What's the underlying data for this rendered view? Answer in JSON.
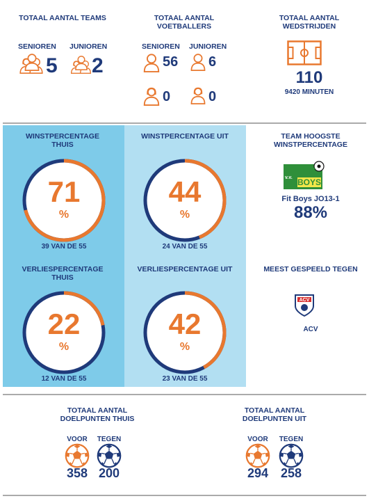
{
  "colors": {
    "navy": "#1f3a7a",
    "orange": "#e8782f",
    "panel_dark": "#7ecbe9",
    "panel_light": "#b2dff2"
  },
  "teams": {
    "title": "TOTAAL AANTAL TEAMS",
    "senioren_label": "SENIOREN",
    "junioren_label": "JUNIOREN",
    "senioren": "5",
    "junioren": "2"
  },
  "voetballers": {
    "title": "TOTAAL AANTAL VOETBALLERS",
    "senioren_label": "SENIOREN",
    "junioren_label": "JUNIOREN",
    "senioren_male": "56",
    "junioren_male": "6",
    "senioren_female": "0",
    "junioren_female": "0"
  },
  "wedstrijden": {
    "title": "TOTAAL AANTAL WEDSTRIJDEN",
    "count": "110",
    "minutes": "9420 MINUTEN"
  },
  "win_home": {
    "title": "WINSTPERCENTAGE THUIS",
    "value": "71",
    "percent": 71,
    "unit": "%",
    "caption": "39 VAN DE 55"
  },
  "win_away": {
    "title": "WINSTPERCENTAGE UIT",
    "value": "44",
    "percent": 44,
    "unit": "%",
    "caption": "24 VAN DE 55"
  },
  "loss_home": {
    "title": "VERLIESPERCENTAGE THUIS",
    "value": "22",
    "percent": 22,
    "unit": "%",
    "caption": "12 VAN DE 55"
  },
  "loss_away": {
    "title": "VERLIESPERCENTAGE UIT",
    "value": "42",
    "percent": 42,
    "unit": "%",
    "caption": "23 VAN DE 55"
  },
  "top_team": {
    "title": "TEAM HOOGSTE WINSTPERCENTAGE",
    "logo_text": "FIT BOYS",
    "logo_prefix": "v.v.",
    "team_name": "Fit Boys JO13-1",
    "percentage": "88%"
  },
  "most_played": {
    "title": "MEEST GESPEELD TEGEN",
    "logo_text": "ACV",
    "opponent": "ACV"
  },
  "goals_home": {
    "title": "TOTAAL AANTAL DOELPUNTEN THUIS",
    "voor_label": "VOOR",
    "tegen_label": "TEGEN",
    "voor": "358",
    "tegen": "200"
  },
  "goals_away": {
    "title": "TOTAAL AANTAL DOELPUNTEN UIT",
    "voor_label": "VOOR",
    "tegen_label": "TEGEN",
    "voor": "294",
    "tegen": "258"
  }
}
